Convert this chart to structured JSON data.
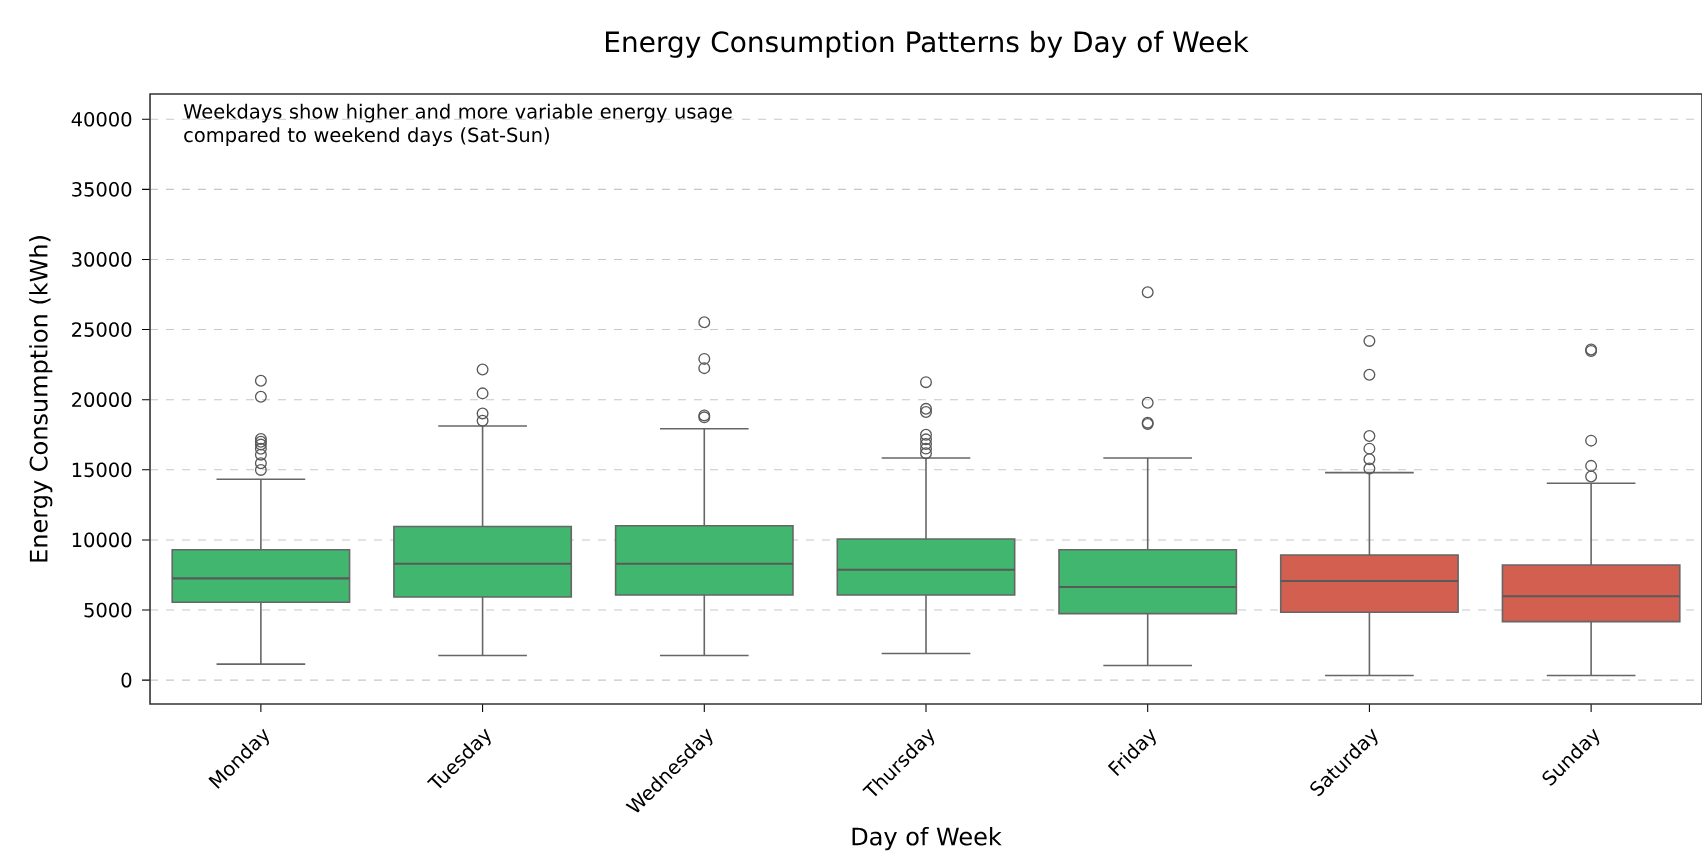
{
  "chart_data": {
    "type": "box",
    "title": "Energy Consumption Patterns by Day of Week",
    "xlabel": "Day of Week",
    "ylabel": "Energy Consumption (kWh)",
    "annotations": [
      "Weekdays show higher and more variable energy usage compared to weekend days (Sat-Sun)"
    ],
    "categories": [
      "Monday",
      "Tuesday",
      "Wednesday",
      "Thursday",
      "Friday",
      "Saturday",
      "Sunday"
    ],
    "colors": [
      "#41b66e",
      "#41b66e",
      "#41b66e",
      "#41b66e",
      "#41b66e",
      "#d35f50",
      "#d35f50"
    ],
    "boxes": [
      {
        "low": 1140,
        "q1": 5550,
        "median": 7260,
        "q3": 9300,
        "high": 14330,
        "outliers": [
          21350,
          20210,
          17200,
          17000,
          16800,
          16500,
          16080,
          15470,
          14990
        ]
      },
      {
        "low": 1760,
        "q1": 5930,
        "median": 8300,
        "q3": 10960,
        "high": 18120,
        "outliers": [
          22150,
          20450,
          19020,
          18500
        ]
      },
      {
        "low": 1760,
        "q1": 6070,
        "median": 8300,
        "q3": 11010,
        "high": 17930,
        "outliers": [
          25520,
          22910,
          22250,
          18880,
          18740
        ]
      },
      {
        "low": 1900,
        "q1": 6070,
        "median": 7870,
        "q3": 10060,
        "high": 15840,
        "outliers": [
          21250,
          19350,
          19120,
          17500,
          17170,
          16840,
          16510,
          16180
        ]
      },
      {
        "low": 1040,
        "q1": 4740,
        "median": 6640,
        "q3": 9300,
        "high": 15840,
        "outliers": [
          27660,
          19780,
          18360,
          18270
        ]
      },
      {
        "low": 330,
        "q1": 4840,
        "median": 7070,
        "q3": 8920,
        "high": 14800,
        "outliers": [
          24190,
          21780,
          17410,
          16510,
          15750,
          15090
        ]
      },
      {
        "low": 330,
        "q1": 4170,
        "median": 5980,
        "q3": 8210,
        "high": 14040,
        "outliers": [
          23580,
          23480,
          17080,
          15280,
          14520
        ]
      }
    ],
    "ylim": [
      -1700,
      41800
    ],
    "yticks": [
      0,
      5000,
      10000,
      15000,
      20000,
      25000,
      30000,
      35000,
      40000
    ],
    "grid": "y"
  }
}
